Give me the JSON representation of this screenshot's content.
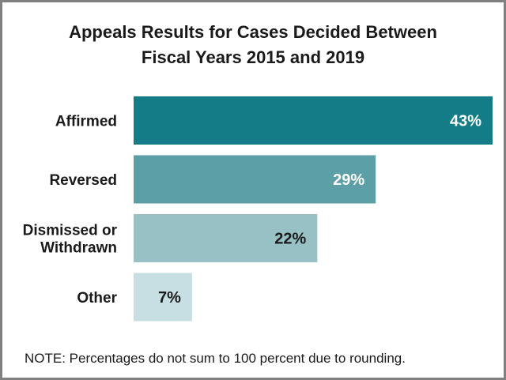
{
  "title_line1": "Appeals Results for Cases Decided Between",
  "title_line2": "Fiscal Years 2015 and 2019",
  "note": "NOTE:  Percentages do not sum to 100 percent due to rounding.",
  "chart_data": {
    "type": "bar",
    "orientation": "horizontal",
    "categories": [
      [
        "Affirmed"
      ],
      [
        "Reversed"
      ],
      [
        "Dismissed or",
        "Withdrawn"
      ],
      [
        "Other"
      ]
    ],
    "values": [
      43,
      29,
      22,
      7
    ],
    "value_labels": [
      "43%",
      "29%",
      "22%",
      "7%"
    ],
    "colors": [
      "#137c86",
      "#5c9fa6",
      "#97c1c5",
      "#c7dfe2"
    ],
    "label_colors": [
      "#ffffff",
      "#ffffff",
      "#1a1a1a",
      "#1a1a1a"
    ],
    "xlim": [
      0,
      43
    ],
    "grid": false,
    "legend": "none"
  }
}
